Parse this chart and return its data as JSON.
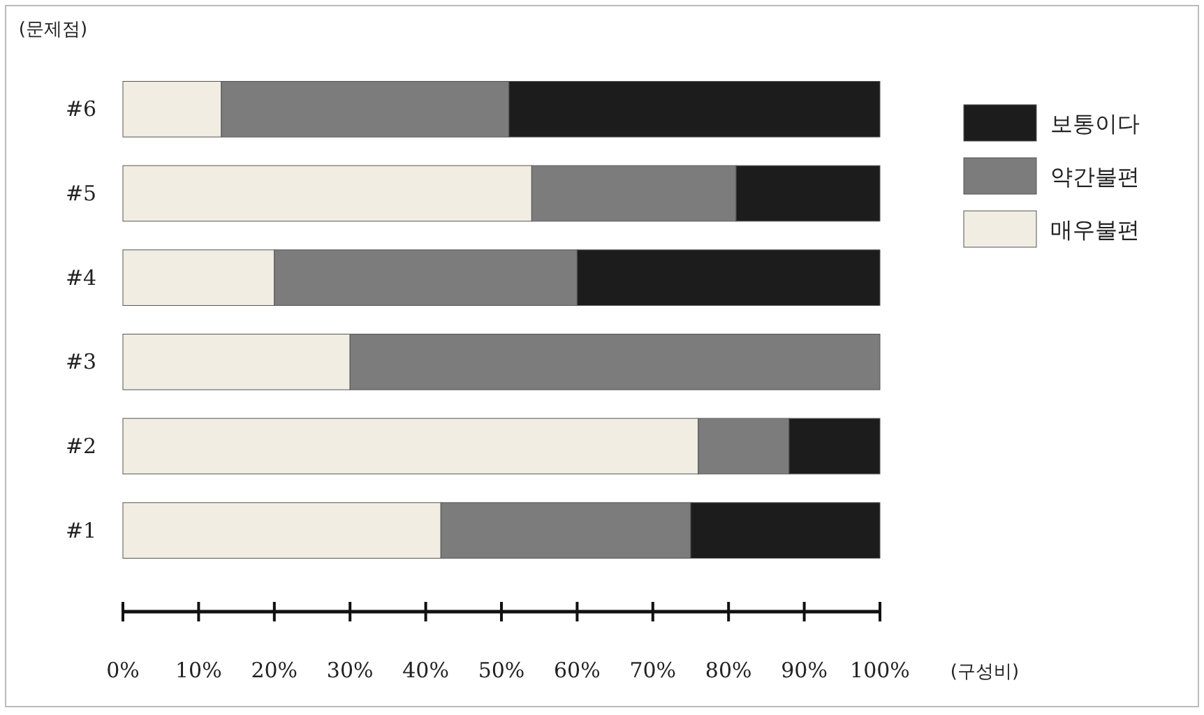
{
  "chart_data": {
    "type": "bar",
    "orientation": "horizontal",
    "stacked": true,
    "ylabel": "(문제점)",
    "xlabel": "(구성비)",
    "categories": [
      "#6",
      "#5",
      "#4",
      "#3",
      "#2",
      "#1"
    ],
    "series": [
      {
        "name": "매우불편",
        "color": "#f1ede2",
        "values": [
          13,
          54,
          20,
          30,
          76,
          42
        ]
      },
      {
        "name": "약간불편",
        "color": "#7c7c7c",
        "values": [
          38,
          27,
          40,
          70,
          12,
          33
        ]
      },
      {
        "name": "보통이다",
        "color": "#1c1c1c",
        "values": [
          49,
          19,
          40,
          0,
          12,
          25
        ]
      }
    ],
    "xlim": [
      0,
      100
    ],
    "xticks": [
      {
        "value": 0,
        "label": "0%"
      },
      {
        "value": 10,
        "label": "10%"
      },
      {
        "value": 20,
        "label": "20%"
      },
      {
        "value": 30,
        "label": "30%"
      },
      {
        "value": 40,
        "label": "40%"
      },
      {
        "value": 50,
        "label": "50%"
      },
      {
        "value": 60,
        "label": "60%"
      },
      {
        "value": 70,
        "label": "70%"
      },
      {
        "value": 80,
        "label": "80%"
      },
      {
        "value": 90,
        "label": "90%"
      },
      {
        "value": 100,
        "label": "100%"
      }
    ],
    "grid": false,
    "legend": "right"
  }
}
